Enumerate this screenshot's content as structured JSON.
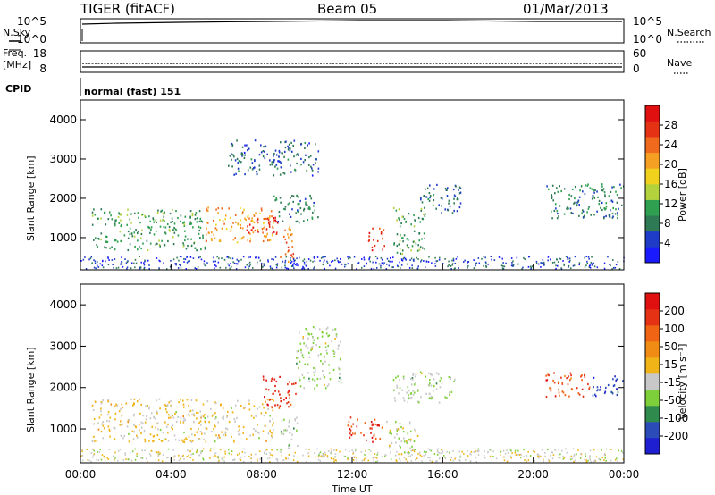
{
  "header": {
    "radar": "TIGER (fitACF)",
    "beam": "Beam 05",
    "date": "01/Mar/2013"
  },
  "left_labels": {
    "nsky": "N.Sky",
    "freq": "Freq.",
    "mhz": "[MHz]",
    "cpid": "CPID"
  },
  "right_labels": {
    "nsearch": "N.Search",
    "nave": "Nave"
  },
  "noise_panel": {
    "ticks_left": [
      "10^5",
      "10^0"
    ],
    "ticks_right": [
      "10^5",
      "10^0"
    ]
  },
  "freq_panel": {
    "ticks_left": [
      "18",
      "8"
    ],
    "ticks_right": [
      "60",
      "0"
    ]
  },
  "cpid_text": "normal (fast) 151",
  "xaxis": {
    "label": "Time UT",
    "ticks": [
      "00:00",
      "04:00",
      "08:00",
      "12:00",
      "16:00",
      "20:00",
      "00:00"
    ]
  },
  "colorbars": {
    "power": {
      "label": "Power [dB]",
      "ticks": [
        "28",
        "24",
        "20",
        "16",
        "12",
        "8",
        "4"
      ],
      "colors": [
        "#1a1aff",
        "#1e3cc8",
        "#2e7a55",
        "#2ea050",
        "#b4d23c",
        "#f0d21e",
        "#f5a023",
        "#f06a1e",
        "#e63214",
        "#e01010"
      ]
    },
    "velocity": {
      "label": "Velocity [m s⁻¹]",
      "ticks": [
        "200",
        "100",
        "50",
        "15",
        "-15",
        "-50",
        "-100",
        "-200"
      ],
      "colors": [
        "#1f1fd2",
        "#2b4bb8",
        "#2f8a4e",
        "#7ed03a",
        "#c8c8c8",
        "#f0b418",
        "#f08c14",
        "#f06414",
        "#e63214",
        "#e01010"
      ]
    }
  },
  "chart_data": [
    {
      "type": "heatmap",
      "title": "Beam 05",
      "ylabel": "Slant Range [km]",
      "xlabel": "Time UT",
      "xlim": [
        0,
        24
      ],
      "ylim": [
        180,
        4500
      ],
      "yticks": [
        1000,
        2000,
        3000,
        4000
      ],
      "quantity": "Power [dB]",
      "color_range": [
        0,
        30
      ],
      "regions": [
        {
          "t0": 0.5,
          "t1": 5.5,
          "r0": 700,
          "r1": 1750,
          "value": 10
        },
        {
          "t0": 5.5,
          "t1": 8.5,
          "r0": 900,
          "r1": 1800,
          "value": 20
        },
        {
          "t0": 7.3,
          "t1": 8.7,
          "r0": 1100,
          "r1": 1600,
          "value": 28
        },
        {
          "t0": 8.5,
          "t1": 10.5,
          "r0": 1400,
          "r1": 2100,
          "value": 8
        },
        {
          "t0": 8.8,
          "t1": 9.4,
          "r0": 400,
          "r1": 1400,
          "value": 22
        },
        {
          "t0": 12.7,
          "t1": 13.4,
          "r0": 700,
          "r1": 1300,
          "value": 26
        },
        {
          "t0": 13.8,
          "t1": 15.2,
          "r0": 600,
          "r1": 1800,
          "value": 10
        },
        {
          "t0": 15.0,
          "t1": 16.8,
          "r0": 1600,
          "r1": 2400,
          "value": 6
        },
        {
          "t0": 20.5,
          "t1": 24.0,
          "r0": 1500,
          "r1": 2400,
          "value": 8
        },
        {
          "t0": 6.5,
          "t1": 10.5,
          "r0": 2600,
          "r1": 3500,
          "value": 6
        }
      ]
    },
    {
      "type": "heatmap",
      "ylabel": "Slant Range [km]",
      "xlabel": "Time UT",
      "xlim": [
        0,
        24
      ],
      "ylim": [
        180,
        4500
      ],
      "yticks": [
        1000,
        2000,
        3000,
        4000
      ],
      "quantity": "Velocity [m s⁻¹]",
      "color_range": [
        -250,
        250
      ],
      "regions": [
        {
          "t0": 0.5,
          "t1": 8.5,
          "r0": 700,
          "r1": 1750,
          "value": 0
        },
        {
          "t0": 8.0,
          "t1": 9.5,
          "r0": 1500,
          "r1": 2300,
          "value": 180
        },
        {
          "t0": 8.8,
          "t1": 9.6,
          "r0": 400,
          "r1": 1300,
          "value": -60
        },
        {
          "t0": 9.5,
          "t1": 11.5,
          "r0": 2000,
          "r1": 3500,
          "value": -50
        },
        {
          "t0": 11.7,
          "t1": 13.3,
          "r0": 700,
          "r1": 1300,
          "value": 180
        },
        {
          "t0": 13.8,
          "t1": 16.5,
          "r0": 1600,
          "r1": 2400,
          "value": -50
        },
        {
          "t0": 13.5,
          "t1": 15.0,
          "r0": 400,
          "r1": 1200,
          "value": -30
        },
        {
          "t0": 20.5,
          "t1": 22.5,
          "r0": 1800,
          "r1": 2400,
          "value": 150
        },
        {
          "t0": 22.5,
          "t1": 24.0,
          "r0": 1800,
          "r1": 2300,
          "value": -180
        }
      ]
    }
  ]
}
